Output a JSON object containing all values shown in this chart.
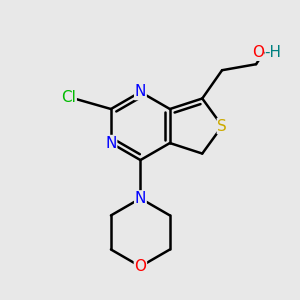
{
  "bg_color": "#e8e8e8",
  "bond_color": "#000000",
  "bond_width": 1.8,
  "colors": {
    "N": "#0000ff",
    "S": "#ccaa00",
    "O": "#ff0000",
    "Cl": "#00bb00",
    "C": "#000000",
    "H": "#008080"
  },
  "font_size": 11,
  "xlim": [
    -1.4,
    1.3
  ],
  "ylim": [
    -1.6,
    1.5
  ]
}
